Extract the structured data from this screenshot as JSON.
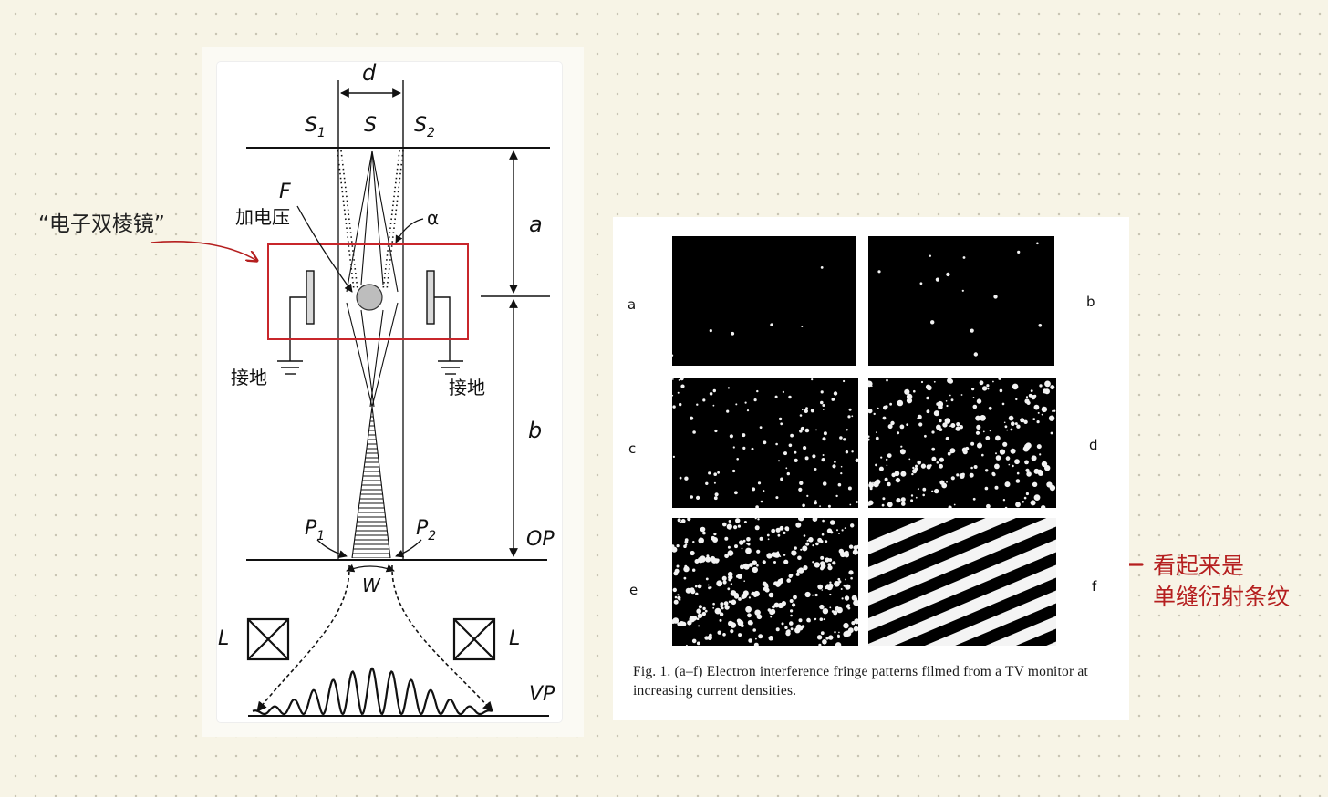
{
  "diagram": {
    "labels": {
      "d": "d",
      "s1_main": "S",
      "s1_sub": "1",
      "s": "S",
      "s2_main": "S",
      "s2_sub": "2",
      "f": "F",
      "alpha": "α",
      "a": "a",
      "b": "b",
      "voltage": "加电压",
      "ground_left": "接地",
      "ground_right": "接地",
      "p1_main": "P",
      "p1_sub": "1",
      "p2_main": "P",
      "p2_sub": "2",
      "op": "OP",
      "w": "W",
      "l_left": "L",
      "l_right": "L",
      "vp": "VP"
    },
    "box_color": "#c8262b"
  },
  "annotations": {
    "prism_label": "“电子双棱镜”",
    "fringe_line1": "看起来是",
    "fringe_line2": "单缝衍射条纹",
    "accent_color": "#b51f1f"
  },
  "figure": {
    "panels": [
      {
        "label": "a"
      },
      {
        "label": "b"
      },
      {
        "label": "c"
      },
      {
        "label": "d"
      },
      {
        "label": "e"
      },
      {
        "label": "f"
      }
    ],
    "caption": "Fig. 1. (a–f) Electron interference fringe patterns filmed from a TV monitor at increasing current densities."
  }
}
